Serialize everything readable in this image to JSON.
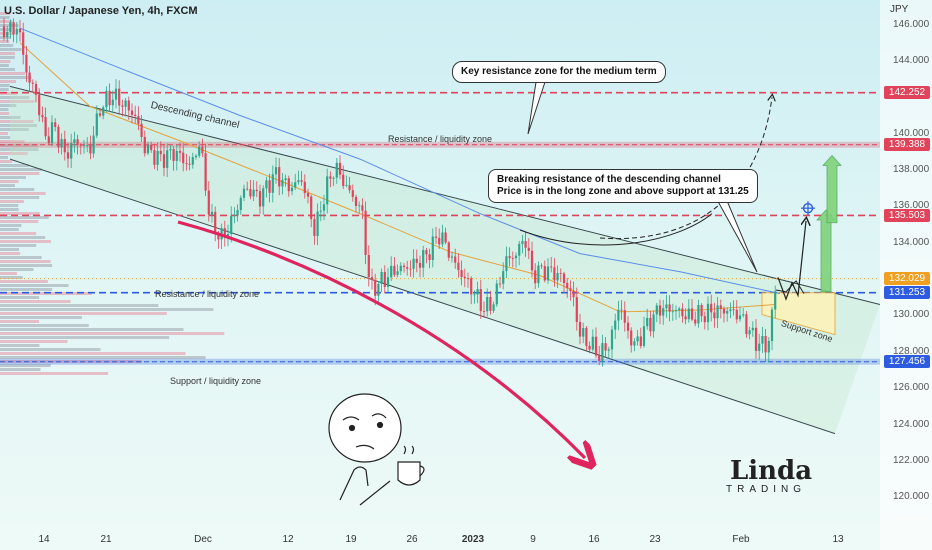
{
  "header": {
    "title": "U.S. Dollar / Japanese Yen, 4h, FXCM",
    "currency": "JPY"
  },
  "chart_data": {
    "type": "candlestick",
    "ylim": [
      118.2,
      146.8
    ],
    "y_ticks": [
      "146.000",
      "144.000",
      "142.000",
      "140.000",
      "138.000",
      "136.000",
      "134.000",
      "132.000",
      "130.000",
      "128.000",
      "126.000",
      "124.000",
      "122.000",
      "120.000"
    ],
    "y_tick_values": [
      146,
      144,
      142,
      140,
      138,
      136,
      134,
      132,
      130,
      128,
      126,
      124,
      122,
      120
    ],
    "x_ticks": [
      {
        "label": "14",
        "bold": false
      },
      {
        "label": "21",
        "bold": false
      },
      {
        "label": "Dec",
        "bold": false
      },
      {
        "label": "12",
        "bold": false
      },
      {
        "label": "19",
        "bold": false
      },
      {
        "label": "26",
        "bold": false
      },
      {
        "label": "2023",
        "bold": true
      },
      {
        "label": "9",
        "bold": false
      },
      {
        "label": "16",
        "bold": false
      },
      {
        "label": "23",
        "bold": false
      },
      {
        "label": "Feb",
        "bold": false
      },
      {
        "label": "13",
        "bold": false
      }
    ],
    "price_levels": [
      {
        "label": "142.252",
        "value": 142.252,
        "color": "#e0435a",
        "style": "dashed"
      },
      {
        "label": "139.388",
        "value": 139.388,
        "color": "#e0435a",
        "style": "zone"
      },
      {
        "label": "135.503",
        "value": 135.503,
        "color": "#e0435a",
        "style": "dashed"
      },
      {
        "label": "132.029",
        "value": 132.029,
        "color": "#f0a020",
        "style": "dotted"
      },
      {
        "label": "131.253",
        "value": 131.253,
        "color": "#2d5ce0",
        "style": "dashed"
      },
      {
        "label": "127.456",
        "value": 127.456,
        "color": "#2d5ce0",
        "style": "zone"
      }
    ],
    "price_path": [
      [
        0,
        146.0
      ],
      [
        8,
        145.6
      ],
      [
        18,
        145.9
      ],
      [
        28,
        143.0
      ],
      [
        36,
        142.2
      ],
      [
        45,
        139.8
      ],
      [
        55,
        140.3
      ],
      [
        65,
        138.8
      ],
      [
        75,
        139.6
      ],
      [
        90,
        139.1
      ],
      [
        100,
        141.4
      ],
      [
        112,
        142.1
      ],
      [
        122,
        141.7
      ],
      [
        135,
        141.0
      ],
      [
        145,
        139.2
      ],
      [
        160,
        138.6
      ],
      [
        175,
        139.0
      ],
      [
        190,
        138.2
      ],
      [
        200,
        139.5
      ],
      [
        210,
        135.3
      ],
      [
        222,
        134.2
      ],
      [
        232,
        135.2
      ],
      [
        245,
        137.0
      ],
      [
        260,
        136.5
      ],
      [
        275,
        137.8
      ],
      [
        290,
        137.0
      ],
      [
        302,
        137.5
      ],
      [
        315,
        134.6
      ],
      [
        325,
        136.8
      ],
      [
        335,
        138.2
      ],
      [
        345,
        137.2
      ],
      [
        362,
        135.7
      ],
      [
        370,
        131.4
      ],
      [
        380,
        131.8
      ],
      [
        395,
        132.5
      ],
      [
        410,
        132.7
      ],
      [
        425,
        133.2
      ],
      [
        440,
        134.5
      ],
      [
        455,
        132.8
      ],
      [
        470,
        131.6
      ],
      [
        485,
        130.3
      ],
      [
        495,
        130.9
      ],
      [
        505,
        133.0
      ],
      [
        515,
        133.3
      ],
      [
        525,
        134.3
      ],
      [
        532,
        132.3
      ],
      [
        545,
        132.5
      ],
      [
        560,
        132.2
      ],
      [
        572,
        131.2
      ],
      [
        580,
        129.0
      ],
      [
        590,
        128.4
      ],
      [
        600,
        127.8
      ],
      [
        610,
        128.5
      ],
      [
        620,
        130.8
      ],
      [
        625,
        129.4
      ],
      [
        635,
        128.3
      ],
      [
        645,
        129.3
      ],
      [
        660,
        130.4
      ],
      [
        675,
        130.3
      ],
      [
        690,
        129.9
      ],
      [
        705,
        130.1
      ],
      [
        720,
        130.3
      ],
      [
        735,
        130.2
      ],
      [
        745,
        129.6
      ],
      [
        755,
        128.6
      ],
      [
        765,
        128.3
      ],
      [
        770,
        128.8
      ],
      [
        774,
        131.2
      ],
      [
        778,
        132.1
      ]
    ],
    "channel": {
      "upper": [
        [
          10,
          142.6
        ],
        [
          880,
          130.6
        ]
      ],
      "lower": [
        [
          10,
          138.6
        ],
        [
          835,
          123.5
        ]
      ]
    },
    "title": "U.S. Dollar / Japanese Yen, 4h, FXCM"
  },
  "annotations": {
    "channel_label": "Descending channel",
    "resistance_upper": "Resistance / liquidity zone",
    "resistance_lower": "Resistance / liquidity zone",
    "support_label": "Support / liquidity zone",
    "support_zone": "Support zone",
    "callout_top": "Key resistance zone for the medium term",
    "callout_mid_line1": "Breaking resistance of the descending channel",
    "callout_mid_line2": "Price is in the long zone and above support at 131.25"
  },
  "logo": {
    "main": "Linda",
    "sub": "TRADING"
  },
  "colors": {
    "bull": "#2ca58d",
    "bear": "#e0435a",
    "arrow": "#e0245e",
    "target": "#7fd27a",
    "support": "#2d5ce0"
  }
}
